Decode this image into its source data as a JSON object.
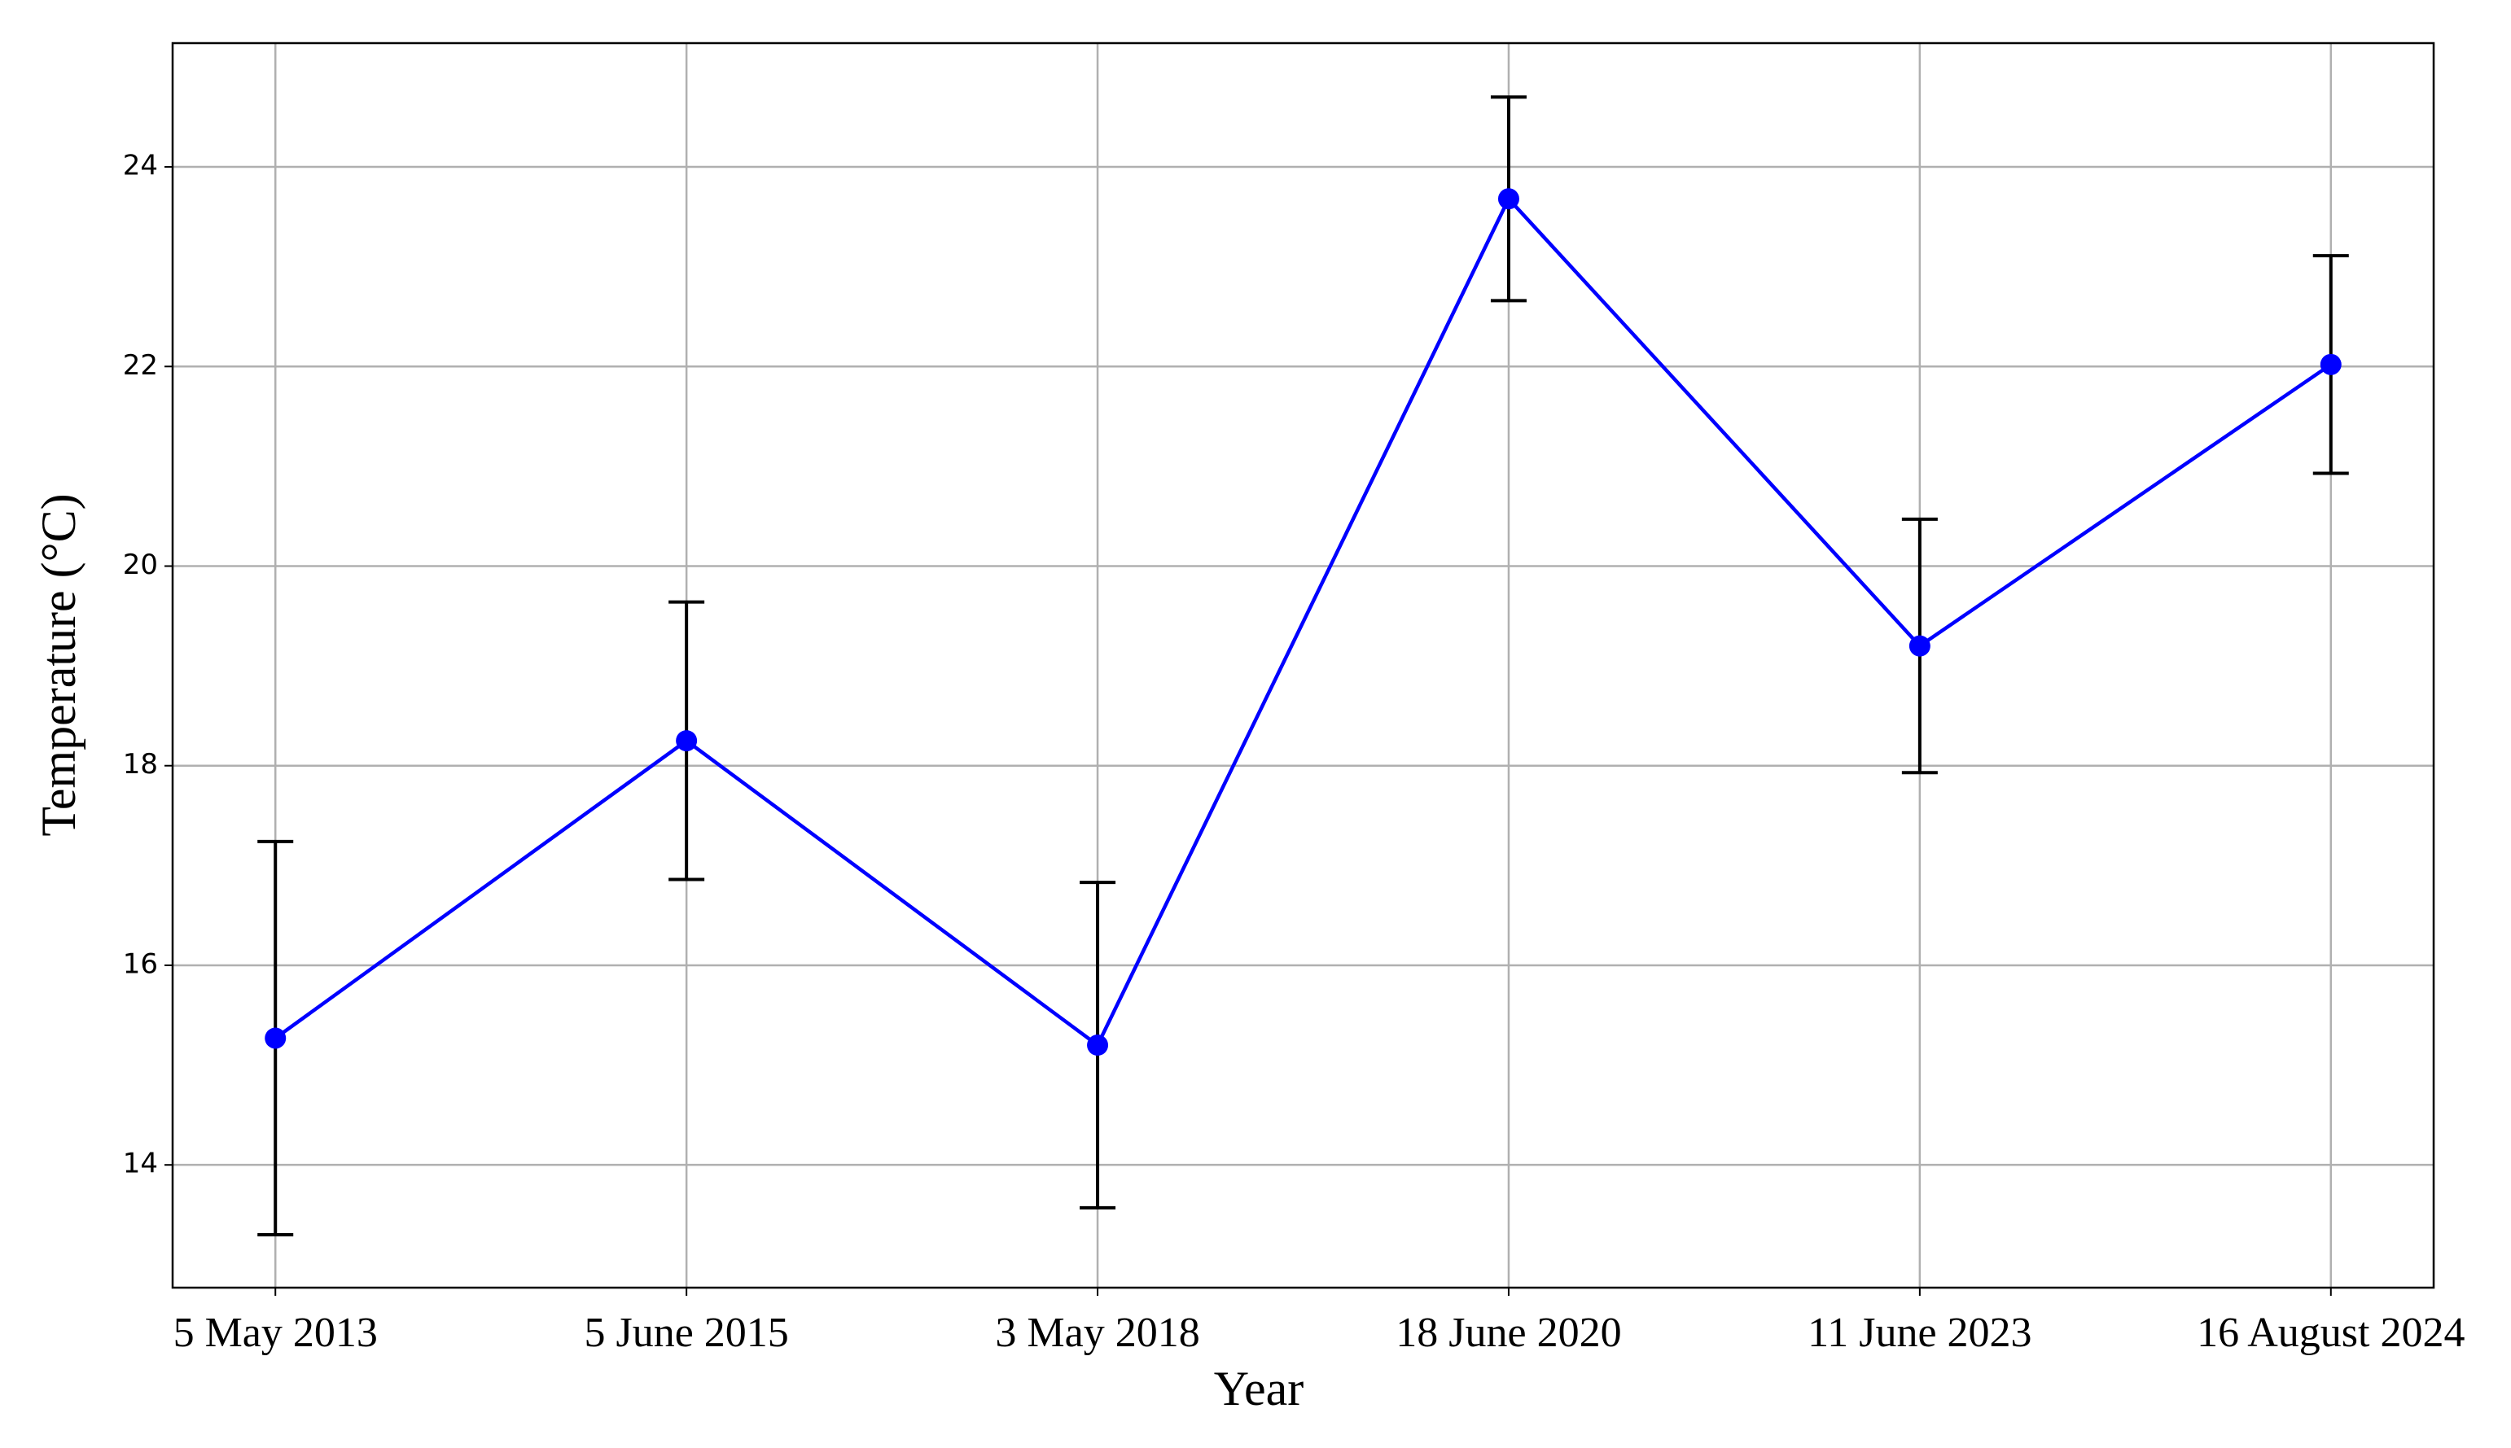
{
  "chart_data": {
    "type": "line",
    "x_label": "Year",
    "y_label": "Temperature (°C)",
    "categories": [
      "5 May 2013",
      "5 June 2015",
      "3 May 2018",
      "18 June 2020",
      "11 June 2023",
      "16 August 2024"
    ],
    "series": [
      {
        "color": "#0000ff",
        "error_color": "#000000",
        "values": [
          15.27,
          18.25,
          15.2,
          23.68,
          19.2,
          22.02
        ],
        "errors": [
          1.97,
          1.39,
          1.63,
          1.02,
          1.27,
          1.09
        ]
      }
    ],
    "ylim": [
      12.77,
      25.24
    ],
    "yticks": [
      14,
      16,
      18,
      20,
      22,
      24
    ],
    "grid": true
  }
}
